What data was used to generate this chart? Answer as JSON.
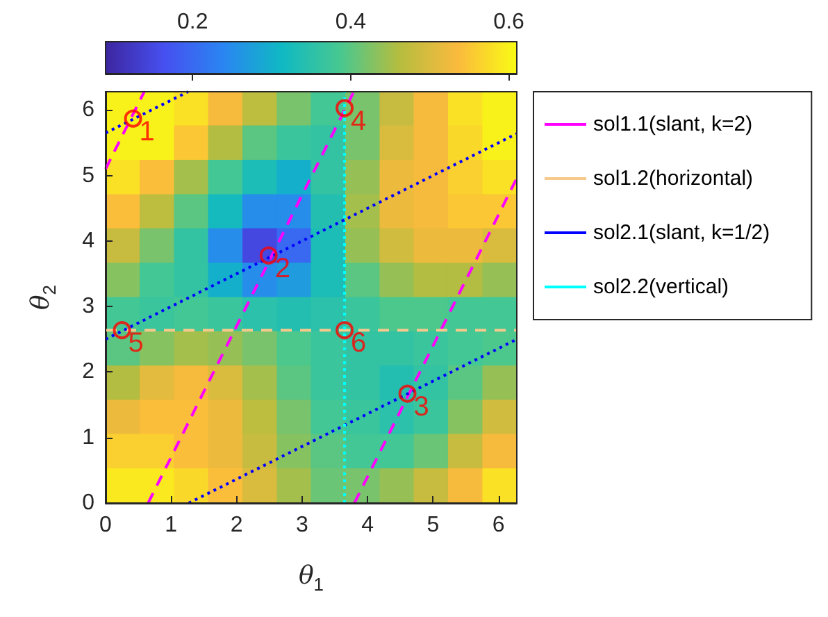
{
  "chart_data": {
    "type": "heatmap",
    "xlabel": "θ$_{1}$",
    "ylabel": "θ$_{2}$",
    "x": [
      0.26,
      0.79,
      1.31,
      1.83,
      2.36,
      2.88,
      3.4,
      3.93,
      4.45,
      4.97,
      5.5,
      6.02
    ],
    "y": [
      6.02,
      5.5,
      4.97,
      4.45,
      3.93,
      3.4,
      2.88,
      2.36,
      1.83,
      1.31,
      0.79,
      0.26
    ],
    "xlim": [
      0,
      6.28
    ],
    "ylim": [
      0,
      6.28
    ],
    "xticks": [
      0,
      1,
      2,
      3,
      4,
      5,
      6
    ],
    "yticks": [
      0,
      1,
      2,
      3,
      4,
      5,
      6
    ],
    "clim": [
      0.09,
      0.61
    ],
    "cticks": [
      0.2,
      0.4,
      0.6
    ],
    "cells": [
      [
        0.6,
        0.6,
        0.58,
        0.53,
        0.47,
        0.42,
        0.38,
        0.42,
        0.48,
        0.53,
        0.58,
        0.6
      ],
      [
        0.6,
        0.6,
        0.55,
        0.46,
        0.4,
        0.37,
        0.36,
        0.42,
        0.5,
        0.53,
        0.57,
        0.6
      ],
      [
        0.58,
        0.54,
        0.45,
        0.38,
        0.33,
        0.3,
        0.36,
        0.44,
        0.52,
        0.53,
        0.56,
        0.58
      ],
      [
        0.54,
        0.47,
        0.4,
        0.32,
        0.25,
        0.25,
        0.34,
        0.45,
        0.52,
        0.53,
        0.55,
        0.55
      ],
      [
        0.48,
        0.42,
        0.36,
        0.25,
        0.15,
        0.2,
        0.33,
        0.44,
        0.49,
        0.52,
        0.52,
        0.5
      ],
      [
        0.43,
        0.38,
        0.36,
        0.3,
        0.25,
        0.27,
        0.33,
        0.4,
        0.44,
        0.46,
        0.46,
        0.44
      ],
      [
        0.38,
        0.37,
        0.38,
        0.37,
        0.35,
        0.34,
        0.35,
        0.37,
        0.39,
        0.39,
        0.38,
        0.38
      ],
      [
        0.4,
        0.43,
        0.45,
        0.44,
        0.42,
        0.39,
        0.37,
        0.36,
        0.36,
        0.37,
        0.38,
        0.39
      ],
      [
        0.46,
        0.51,
        0.53,
        0.5,
        0.45,
        0.4,
        0.37,
        0.36,
        0.34,
        0.36,
        0.4,
        0.44
      ],
      [
        0.52,
        0.54,
        0.54,
        0.52,
        0.47,
        0.42,
        0.38,
        0.37,
        0.35,
        0.37,
        0.43,
        0.49
      ],
      [
        0.56,
        0.56,
        0.54,
        0.52,
        0.48,
        0.43,
        0.4,
        0.38,
        0.38,
        0.41,
        0.48,
        0.53
      ],
      [
        0.59,
        0.59,
        0.57,
        0.54,
        0.5,
        0.45,
        0.41,
        0.42,
        0.44,
        0.48,
        0.53,
        0.58
      ]
    ],
    "series": [
      {
        "type": "line",
        "name": "sol1.1(slant, k=2)",
        "color": "#ff00ff",
        "line_style": "dashed",
        "x": [
          0,
          0.59
        ],
        "values": [
          5.1,
          6.28
        ]
      },
      {
        "type": "line",
        "color": "#ff00ff",
        "line_style": "dashed",
        "x": [
          0.65,
          3.79
        ],
        "values": [
          0,
          6.28
        ]
      },
      {
        "type": "line",
        "color": "#ff00ff",
        "line_style": "dashed",
        "x": [
          3.8,
          6.28
        ],
        "values": [
          0,
          4.96
        ]
      },
      {
        "type": "line",
        "name": "sol1.2(horizontal)",
        "color": "#f8c98c",
        "line_style": "dashed",
        "x": [
          0,
          6.28
        ],
        "values": [
          2.64,
          2.64
        ]
      },
      {
        "type": "line",
        "name": "sol2.1(slant, k=1/2)",
        "color": "#0000ff",
        "line_style": "dotted",
        "x": [
          0,
          1.26
        ],
        "values": [
          5.65,
          6.28
        ]
      },
      {
        "type": "line",
        "color": "#0000ff",
        "line_style": "dotted",
        "x": [
          0,
          6.28
        ],
        "values": [
          2.5,
          5.64
        ]
      },
      {
        "type": "line",
        "color": "#0000ff",
        "line_style": "dotted",
        "x": [
          1.27,
          6.28
        ],
        "values": [
          0,
          2.5
        ]
      },
      {
        "type": "line",
        "name": "sol2.2(vertical)",
        "color": "#00ffff",
        "line_style": "dotted",
        "x": [
          3.65,
          3.65
        ],
        "values": [
          0,
          6.28
        ]
      },
      {
        "type": "scatter",
        "color": "#ff0000",
        "marker": "circle",
        "x": [
          0.42,
          2.49,
          4.61,
          3.65,
          0.25,
          3.65
        ],
        "values": [
          5.87,
          3.78,
          1.67,
          6.03,
          2.64,
          2.64
        ]
      }
    ],
    "annotations": [
      {
        "text": "1",
        "x": 0.42,
        "y": 5.87
      },
      {
        "text": "2",
        "x": 2.49,
        "y": 3.78
      },
      {
        "text": "3",
        "x": 4.61,
        "y": 1.67
      },
      {
        "text": "4",
        "x": 3.65,
        "y": 6.03
      },
      {
        "text": "5",
        "x": 0.25,
        "y": 2.64
      },
      {
        "text": "6",
        "x": 3.65,
        "y": 2.64
      }
    ],
    "grid": false,
    "legend": "right"
  }
}
